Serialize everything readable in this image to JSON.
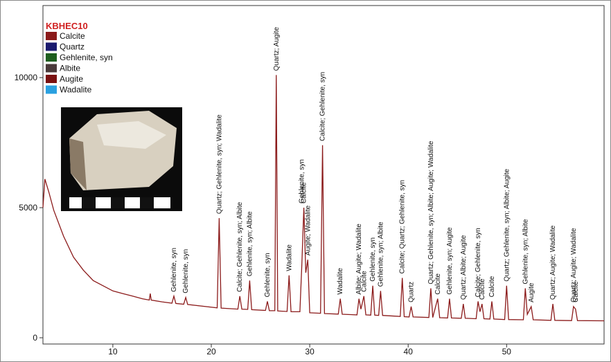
{
  "chart_data": {
    "type": "line",
    "title": "KBHEC10",
    "xlim": [
      2.9,
      59.9
    ],
    "ylim": [
      -240,
      12770
    ],
    "xticks": [
      10,
      20,
      30,
      40,
      50
    ],
    "yticks": [
      0,
      5000,
      10000
    ],
    "x": [
      2.9,
      3.1,
      3.5,
      4,
      5,
      6,
      7,
      8,
      9,
      10,
      11,
      12,
      13,
      13.7,
      13.8,
      13.9,
      15,
      16.0,
      16.2,
      16.4,
      17.2,
      17.4,
      17.6,
      20.6,
      20.8,
      21.0,
      22.7,
      22.9,
      23.1,
      23.7,
      23.9,
      24.1,
      25.5,
      25.7,
      25.9,
      26.45,
      26.6,
      26.75,
      27.7,
      27.9,
      28.1,
      29.0,
      29.2,
      29.4,
      29.6,
      29.8,
      30.0,
      31.1,
      31.3,
      31.5,
      32.9,
      33.1,
      33.3,
      34.8,
      35.0,
      35.2,
      35.5,
      35.7,
      36.2,
      36.4,
      36.6,
      37.0,
      37.2,
      37.4,
      39.2,
      39.4,
      39.6,
      40.1,
      40.3,
      40.5,
      42.1,
      42.3,
      42.5,
      43.0,
      43.2,
      44.0,
      44.2,
      44.4,
      45.4,
      45.6,
      45.8,
      46.9,
      47.1,
      47.3,
      47.5,
      47.7,
      48.3,
      48.5,
      48.7,
      49.8,
      50.0,
      50.2,
      51.7,
      51.9,
      52.1,
      52.5,
      52.7,
      54.5,
      54.7,
      54.9,
      56.6,
      56.8,
      57.0,
      57.2,
      59.9
    ],
    "series": [
      {
        "name": "KBHEC10",
        "color": "#8b1a1a",
        "values": [
          5000,
          6100,
          5600,
          4900,
          3900,
          3100,
          2600,
          2200,
          2000,
          1800,
          1700,
          1600,
          1500,
          1450,
          1700,
          1450,
          1380,
          1330,
          1600,
          1320,
          1290,
          1550,
          1280,
          1150,
          4600,
          1140,
          1100,
          1600,
          1100,
          1090,
          2200,
          1080,
          1050,
          1400,
          1040,
          1040,
          10100,
          1030,
          1010,
          2400,
          1000,
          1000,
          2800,
          5000,
          2500,
          3000,
          960,
          940,
          7400,
          930,
          910,
          1500,
          905,
          880,
          1500,
          1100,
          1600,
          880,
          870,
          2000,
          870,
          860,
          1800,
          860,
          820,
          2300,
          810,
          800,
          1200,
          800,
          780,
          1900,
          780,
          1500,
          770,
          760,
          1500,
          760,
          750,
          1300,
          750,
          730,
          1400,
          1000,
          1300,
          730,
          720,
          1400,
          720,
          700,
          2000,
          700,
          690,
          1900,
          900,
          1200,
          690,
          670,
          1300,
          670,
          660,
          1200,
          1100,
          660,
          650
        ]
      }
    ],
    "legend": [
      {
        "name": "Calcite",
        "color": "#8b1a1a"
      },
      {
        "name": "Quartz",
        "color": "#1a1a6e"
      },
      {
        "name": "Gehlenite, syn",
        "color": "#1e5e1e"
      },
      {
        "name": "Albite",
        "color": "#4a3a3a"
      },
      {
        "name": "Augite",
        "color": "#7a1010"
      },
      {
        "name": "Wadalite",
        "color": "#2aa0e0"
      }
    ],
    "annotations": [
      {
        "text": "Gehlenite, syn",
        "x": 16.2
      },
      {
        "text": "Gehlenite, syn",
        "x": 17.4
      },
      {
        "text": "Quartz; Gehlenite, syn; Wadalite",
        "x": 20.8
      },
      {
        "text": "Calcite; Gehlenite, syn; Albite",
        "x": 22.9
      },
      {
        "text": "Gehlenite, syn; Albite",
        "x": 23.9
      },
      {
        "text": "Gehlenite, syn",
        "x": 25.7
      },
      {
        "text": "Quartz; Augite",
        "x": 26.6
      },
      {
        "text": "Wadalite",
        "x": 27.9
      },
      {
        "text": "Gehlenite, syn",
        "x": 29.2
      },
      {
        "text": "Calcite",
        "x": 29.4
      },
      {
        "text": "Augite; Wadalite",
        "x": 29.8
      },
      {
        "text": "Calcite; Gehlenite, syn",
        "x": 31.3
      },
      {
        "text": "Wadalite",
        "x": 33.1
      },
      {
        "text": "Albite; Augite; Wadalite",
        "x": 35.0
      },
      {
        "text": "Calcite",
        "x": 35.5
      },
      {
        "text": "Gehlenite, syn",
        "x": 36.4
      },
      {
        "text": "Gehlenite, syn; Albite",
        "x": 37.2
      },
      {
        "text": "Calcite; Quartz; Gehlenite, syn",
        "x": 39.4
      },
      {
        "text": "Quartz",
        "x": 40.3
      },
      {
        "text": "Quartz; Gehlenite, syn; Albite; Augite; Wadalite",
        "x": 42.3
      },
      {
        "text": "Calcite",
        "x": 43.0
      },
      {
        "text": "Gehlenite, syn; Augite",
        "x": 44.2
      },
      {
        "text": "Quartz; Albite; Augite",
        "x": 45.6
      },
      {
        "text": "Calcite; Gehlenite, syn",
        "x": 47.1
      },
      {
        "text": "Calcite",
        "x": 47.5
      },
      {
        "text": "Calcite",
        "x": 48.5
      },
      {
        "text": "Quartz; Gehlenite, syn; Albite; Augite",
        "x": 50.0
      },
      {
        "text": "Gehlenite, syn; Albite",
        "x": 51.9
      },
      {
        "text": "Augite",
        "x": 52.5
      },
      {
        "text": "Quartz; Augite; Wadalite",
        "x": 54.7
      },
      {
        "text": "Quartz; Augite; Wadalite",
        "x": 56.8
      },
      {
        "text": "Calcite",
        "x": 57.0
      }
    ]
  }
}
